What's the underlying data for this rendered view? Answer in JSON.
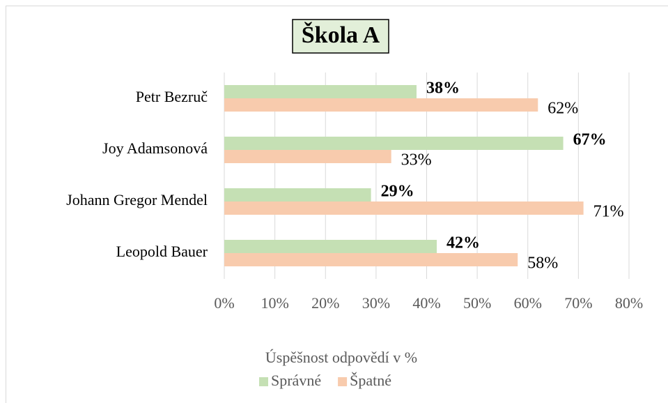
{
  "chart_data": {
    "type": "hbar",
    "title": "Škola A",
    "categories": [
      "Petr Bezruč",
      "Joy Adamsonová",
      "Johann Gregor Mendel",
      "Leopold Bauer"
    ],
    "series": [
      {
        "name": "Správné",
        "color": "#c5e0b4",
        "values": [
          38,
          67,
          29,
          42
        ],
        "value_labels": [
          "38%",
          "67%",
          "29%",
          "42%"
        ]
      },
      {
        "name": "Špatné",
        "color": "#f8cbad",
        "values": [
          62,
          33,
          71,
          58
        ],
        "value_labels": [
          "62%",
          "33%",
          "71%",
          "58%"
        ]
      }
    ],
    "xlabel": "Úspěšnost odpovědí v %",
    "xlim": [
      0,
      80
    ],
    "xticks": [
      {
        "value": 0,
        "label": "0%"
      },
      {
        "value": 10,
        "label": "10%"
      },
      {
        "value": 20,
        "label": "20%"
      },
      {
        "value": 30,
        "label": "30%"
      },
      {
        "value": 40,
        "label": "40%"
      },
      {
        "value": 50,
        "label": "50%"
      },
      {
        "value": 60,
        "label": "60%"
      },
      {
        "value": 70,
        "label": "70%"
      },
      {
        "value": 80,
        "label": "80%"
      }
    ],
    "grid": true,
    "legend": "bottom"
  }
}
